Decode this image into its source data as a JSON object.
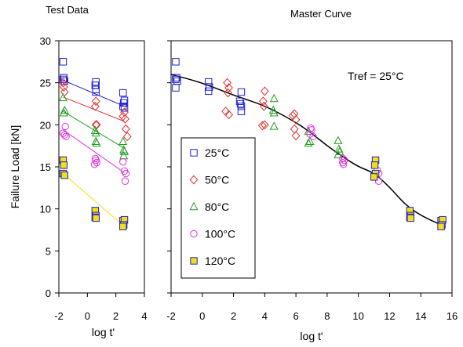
{
  "chart_data": [
    {
      "type": "scatter",
      "title": "Test Data",
      "xlabel": "log t'",
      "ylabel": "Failure Load [kN]",
      "xlim": [
        -2,
        4
      ],
      "ylim": [
        0,
        30
      ],
      "xticks": [
        "-2",
        "0",
        "2",
        "4"
      ],
      "yticks": [
        "0",
        "5",
        "10",
        "15",
        "20",
        "25",
        "30"
      ],
      "grid": false,
      "series": [
        {
          "name": "25°C",
          "color": "#1f1fd6",
          "marker": "square",
          "points": [
            [
              -1.7,
              27.5
            ],
            [
              -1.65,
              25.6
            ],
            [
              -1.7,
              25.4
            ],
            [
              -1.6,
              25.2
            ],
            [
              0.6,
              25.1
            ],
            [
              0.55,
              24.7
            ],
            [
              0.6,
              24.2
            ],
            [
              0.6,
              23.9
            ],
            [
              2.5,
              23.8
            ],
            [
              2.6,
              22.9
            ],
            [
              2.55,
              22.6
            ],
            [
              2.5,
              22.2
            ],
            [
              2.6,
              22.0
            ]
          ],
          "fit": [
            [
              -1.7,
              25.3
            ],
            [
              2.6,
              22.2
            ]
          ]
        },
        {
          "name": "50°C",
          "color": "#e03030",
          "marker": "diamond",
          "points": [
            [
              -1.7,
              25.0
            ],
            [
              -1.65,
              24.5
            ],
            [
              -1.6,
              23.9
            ],
            [
              0.6,
              22.8
            ],
            [
              0.55,
              22.2
            ],
            [
              0.6,
              20.0
            ],
            [
              0.65,
              20.0
            ],
            [
              2.5,
              21.0
            ],
            [
              2.6,
              21.5
            ],
            [
              2.65,
              20.7
            ],
            [
              2.7,
              19.5
            ],
            [
              2.8,
              18.6
            ]
          ],
          "fit": [
            [
              -1.7,
              23.3
            ],
            [
              2.6,
              20.4
            ]
          ]
        },
        {
          "name": "80°C",
          "color": "#20a020",
          "marker": "triangle",
          "points": [
            [
              -1.7,
              23.2
            ],
            [
              -1.6,
              21.7
            ],
            [
              -1.65,
              21.4
            ],
            [
              0.55,
              19.3
            ],
            [
              0.6,
              19.0
            ],
            [
              0.6,
              18.0
            ],
            [
              0.65,
              17.8
            ],
            [
              2.5,
              18.0
            ],
            [
              2.55,
              17.0
            ],
            [
              2.6,
              16.8
            ],
            [
              2.55,
              16.3
            ]
          ],
          "fit": [
            [
              -1.7,
              21.6
            ],
            [
              2.6,
              17.2
            ]
          ]
        },
        {
          "name": "100°C",
          "color": "#e030e0",
          "marker": "circle",
          "points": [
            [
              -1.7,
              19.0
            ],
            [
              -1.6,
              18.8
            ],
            [
              -1.5,
              18.6
            ],
            [
              -1.55,
              19.8
            ],
            [
              0.55,
              16.0
            ],
            [
              0.6,
              15.8
            ],
            [
              0.5,
              15.3
            ],
            [
              0.65,
              15.5
            ],
            [
              2.5,
              15.6
            ],
            [
              2.6,
              14.5
            ],
            [
              2.7,
              14.2
            ],
            [
              2.65,
              13.3
            ]
          ],
          "fit": [
            [
              -1.7,
              19.4
            ],
            [
              2.6,
              14.3
            ]
          ]
        },
        {
          "name": "120°C",
          "color": "#f0e010",
          "marker": "filled-square",
          "points": [
            [
              -1.7,
              15.8
            ],
            [
              -1.65,
              15.2
            ],
            [
              -1.7,
              14.2
            ],
            [
              -1.6,
              14.0
            ],
            [
              0.55,
              9.8
            ],
            [
              0.6,
              9.2
            ],
            [
              0.55,
              9.0
            ],
            [
              0.6,
              8.9
            ],
            [
              2.5,
              8.6
            ],
            [
              2.6,
              8.7
            ],
            [
              2.55,
              8.1
            ],
            [
              2.5,
              7.9
            ]
          ],
          "fit": [
            [
              -1.7,
              14.2
            ],
            [
              2.6,
              7.9
            ]
          ]
        }
      ]
    },
    {
      "type": "scatter",
      "title": "Master Curve",
      "xlabel": "log t'",
      "ylabel": "",
      "xlim": [
        -2,
        16
      ],
      "ylim": [
        0,
        30
      ],
      "xticks": [
        "-2",
        "0",
        "2",
        "4",
        "6",
        "8",
        "10",
        "12",
        "14",
        "16"
      ],
      "annotation": "Tref = 25°C",
      "legend": {
        "position": "inside-left",
        "items": [
          {
            "label": "25°C",
            "series": 0
          },
          {
            "label": "50°C",
            "series": 1
          },
          {
            "label": "80°C",
            "series": 2
          },
          {
            "label": "100°C",
            "series": 3
          },
          {
            "label": "120°C",
            "series": 4
          }
        ]
      },
      "series": [
        {
          "name": "25°C",
          "points": [
            [
              -1.7,
              27.5
            ],
            [
              -1.65,
              25.6
            ],
            [
              -1.7,
              25.4
            ],
            [
              -1.6,
              25.2
            ],
            [
              -1.7,
              24.4
            ],
            [
              0.4,
              25.1
            ],
            [
              0.45,
              24.5
            ],
            [
              0.4,
              24.0
            ],
            [
              2.5,
              23.9
            ],
            [
              2.4,
              22.8
            ],
            [
              2.45,
              22.5
            ],
            [
              2.5,
              22.2
            ],
            [
              2.5,
              21.6
            ]
          ]
        },
        {
          "name": "50°C",
          "points": [
            [
              1.6,
              25.0
            ],
            [
              1.7,
              24.4
            ],
            [
              1.65,
              23.8
            ],
            [
              1.5,
              21.6
            ],
            [
              1.7,
              21.2
            ],
            [
              4.0,
              24.0
            ],
            [
              3.9,
              22.8
            ],
            [
              3.95,
              22.2
            ],
            [
              4.0,
              20.0
            ],
            [
              3.85,
              19.9
            ],
            [
              5.9,
              21.3
            ],
            [
              5.8,
              21.1
            ],
            [
              6.0,
              20.6
            ],
            [
              5.9,
              19.5
            ],
            [
              6.0,
              18.7
            ]
          ]
        },
        {
          "name": "80°C",
          "points": [
            [
              4.6,
              23.1
            ],
            [
              4.55,
              21.7
            ],
            [
              4.6,
              21.4
            ],
            [
              4.6,
              19.8
            ],
            [
              6.8,
              19.2
            ],
            [
              6.9,
              18.0
            ],
            [
              6.8,
              17.8
            ],
            [
              8.7,
              18.1
            ],
            [
              8.75,
              17.1
            ],
            [
              8.8,
              16.8
            ],
            [
              8.7,
              16.4
            ]
          ]
        },
        {
          "name": "100°C",
          "points": [
            [
              7.0,
              19.4
            ],
            [
              6.9,
              18.9
            ],
            [
              7.1,
              18.6
            ],
            [
              6.95,
              19.6
            ],
            [
              9.0,
              16.0
            ],
            [
              9.1,
              15.8
            ],
            [
              9.05,
              15.3
            ],
            [
              9.0,
              15.5
            ],
            [
              11.1,
              15.6
            ],
            [
              11.2,
              14.6
            ],
            [
              11.3,
              14.2
            ],
            [
              11.3,
              13.3
            ]
          ]
        },
        {
          "name": "120°C",
          "points": [
            [
              11.1,
              15.8
            ],
            [
              11.05,
              15.2
            ],
            [
              11.1,
              14.2
            ],
            [
              11.0,
              13.8
            ],
            [
              13.3,
              9.8
            ],
            [
              13.35,
              9.2
            ],
            [
              13.3,
              9.0
            ],
            [
              13.35,
              8.9
            ],
            [
              15.3,
              8.6
            ],
            [
              15.4,
              8.7
            ],
            [
              15.35,
              8.1
            ],
            [
              15.3,
              7.9
            ]
          ]
        }
      ],
      "curve": [
        [
          -2,
          26.0
        ],
        [
          0,
          25.0
        ],
        [
          2,
          23.5
        ],
        [
          4,
          22.3
        ],
        [
          6,
          20.3
        ],
        [
          7,
          19.0
        ],
        [
          8,
          17.5
        ],
        [
          9,
          16.2
        ],
        [
          10,
          15.0
        ],
        [
          11,
          14.3
        ],
        [
          12,
          12.6
        ],
        [
          13,
          10.5
        ],
        [
          14,
          9.2
        ],
        [
          15.3,
          8.1
        ]
      ]
    }
  ]
}
